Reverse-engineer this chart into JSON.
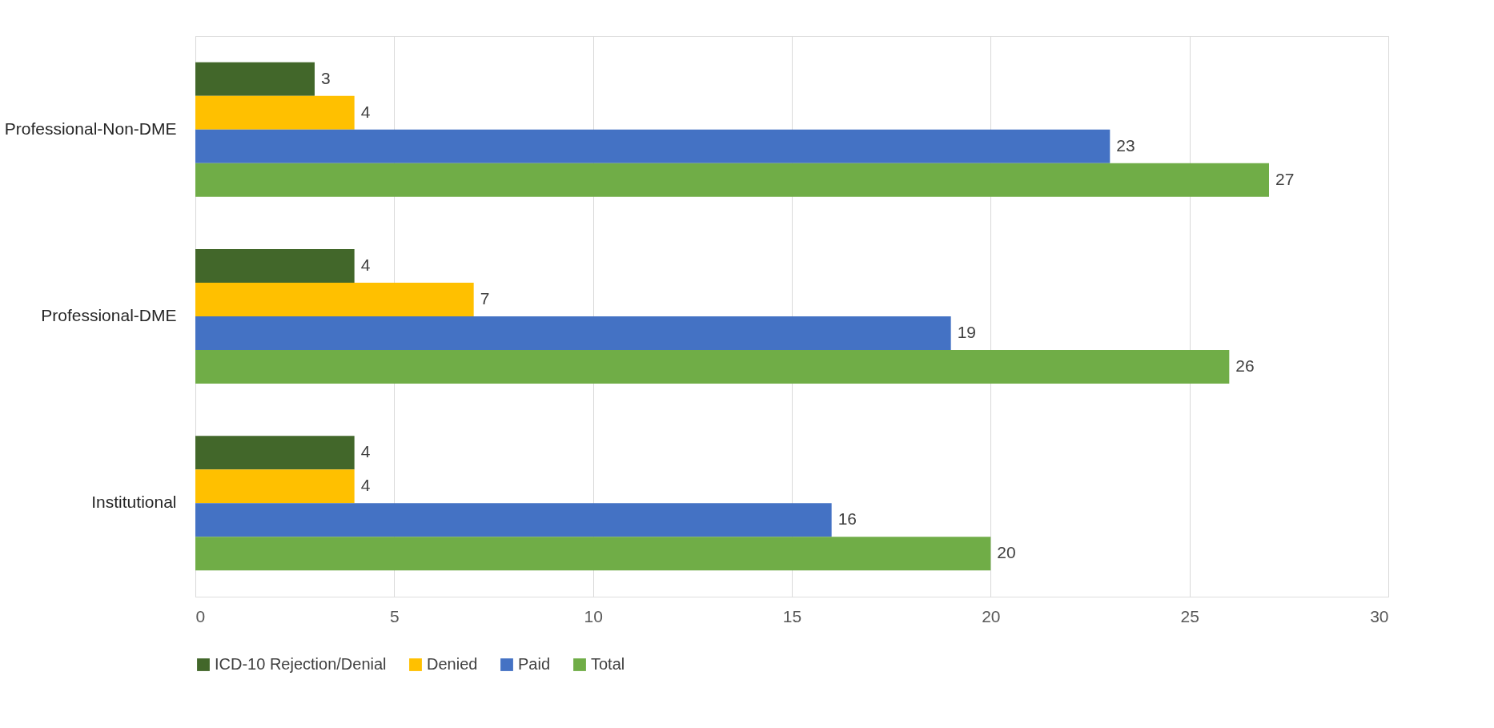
{
  "chart_data": {
    "type": "bar",
    "orientation": "horizontal",
    "categories": [
      "Professional-Non-DME",
      "Professional-DME",
      "Institutional"
    ],
    "series": [
      {
        "name": "ICD-10 Rejection/Denial",
        "color": "#42672a",
        "values": [
          3,
          4,
          4
        ]
      },
      {
        "name": "Denied",
        "color": "#ffc000",
        "values": [
          4,
          7,
          4
        ]
      },
      {
        "name": "Paid",
        "color": "#4472c4",
        "values": [
          23,
          19,
          16
        ]
      },
      {
        "name": "Total",
        "color": "#70ad47",
        "values": [
          27,
          26,
          20
        ]
      }
    ],
    "xlim": [
      0,
      30
    ],
    "xticks": [
      0,
      5,
      10,
      15,
      20,
      25,
      30
    ],
    "grid": "x",
    "legend": "bottom",
    "data_labels": true
  }
}
